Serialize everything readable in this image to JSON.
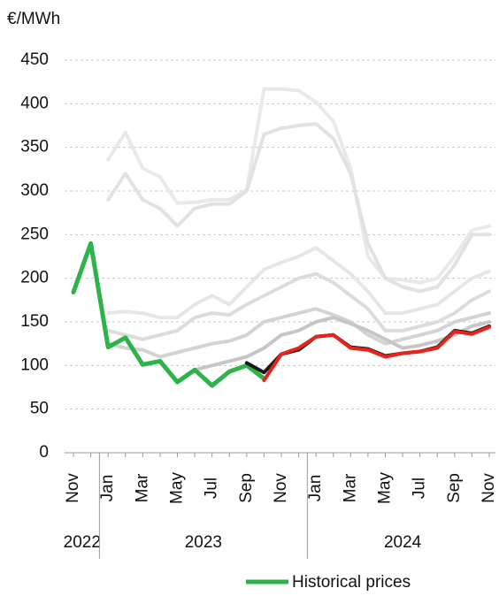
{
  "chart_data": {
    "type": "line",
    "y_label": "€/MWh",
    "categories": [
      "Nov",
      null,
      "Jan",
      null,
      "Mar",
      null,
      "May",
      null,
      "Jul",
      null,
      "Sep",
      null,
      "Nov",
      null,
      "Jan",
      null,
      "Mar",
      null,
      "May",
      null,
      "Jul",
      null,
      "Sep",
      null,
      "Nov"
    ],
    "x_groups": [
      {
        "label": "2022",
        "start": 0,
        "end": 1
      },
      {
        "label": "2023",
        "start": 2,
        "end": 13
      },
      {
        "label": "2024",
        "start": 14,
        "end": 24
      }
    ],
    "ylim": [
      0,
      450
    ],
    "yticks": [
      0,
      50,
      100,
      150,
      200,
      250,
      300,
      350,
      400,
      450
    ],
    "grid": true,
    "legend": "bottom",
    "series": [
      {
        "color": "#e9e9e9",
        "values": [
          null,
          null,
          336,
          367,
          326,
          316,
          286,
          287,
          290,
          290,
          301,
          417,
          417,
          415,
          402,
          380,
          326,
          225,
          200,
          198,
          195,
          200,
          225,
          255,
          260
        ]
      },
      {
        "color": "#e2e2e2",
        "values": [
          null,
          null,
          290,
          320,
          290,
          280,
          260,
          280,
          285,
          285,
          300,
          365,
          372,
          375,
          377,
          360,
          320,
          240,
          200,
          190,
          185,
          190,
          215,
          250,
          250
        ]
      },
      {
        "color": "#e6e6e6",
        "values": [
          null,
          null,
          160,
          162,
          160,
          155,
          155,
          170,
          180,
          170,
          190,
          210,
          218,
          225,
          235,
          220,
          205,
          185,
          160,
          160,
          165,
          170,
          185,
          200,
          208
        ]
      },
      {
        "color": "#dcdcdc",
        "values": [
          null,
          null,
          140,
          135,
          130,
          135,
          140,
          155,
          160,
          158,
          170,
          180,
          190,
          200,
          205,
          195,
          180,
          165,
          140,
          140,
          145,
          150,
          160,
          175,
          185
        ]
      },
      {
        "color": "#d3d3d3",
        "values": [
          null,
          null,
          125,
          120,
          118,
          110,
          115,
          120,
          125,
          128,
          135,
          150,
          155,
          160,
          165,
          158,
          150,
          135,
          125,
          130,
          135,
          140,
          150,
          155,
          160
        ]
      },
      {
        "color": "#c6c6c6",
        "values": [
          null,
          null,
          null,
          null,
          null,
          null,
          null,
          95,
          100,
          105,
          110,
          120,
          135,
          140,
          150,
          155,
          148,
          140,
          130,
          120,
          123,
          128,
          135,
          145,
          150
        ]
      },
      {
        "name": "Historical prices",
        "color": "#2db34a",
        "values": [
          184,
          240,
          121,
          132,
          101,
          105,
          81,
          95,
          77,
          93,
          100,
          85,
          null,
          null,
          null,
          null,
          null,
          null,
          null,
          null,
          null,
          null,
          null,
          null,
          null
        ]
      },
      {
        "color": "#1a1a1a",
        "values": [
          null,
          null,
          null,
          null,
          null,
          null,
          null,
          null,
          null,
          null,
          103,
          92,
          113,
          118,
          133,
          135,
          121,
          119,
          111,
          114,
          116,
          121,
          140,
          137,
          145
        ]
      },
      {
        "color": "#e8231c",
        "values": [
          null,
          null,
          null,
          null,
          null,
          null,
          null,
          null,
          null,
          null,
          null,
          83,
          113,
          120,
          133,
          135,
          120,
          118,
          110,
          114,
          116,
          120,
          139,
          136,
          144
        ]
      }
    ]
  }
}
